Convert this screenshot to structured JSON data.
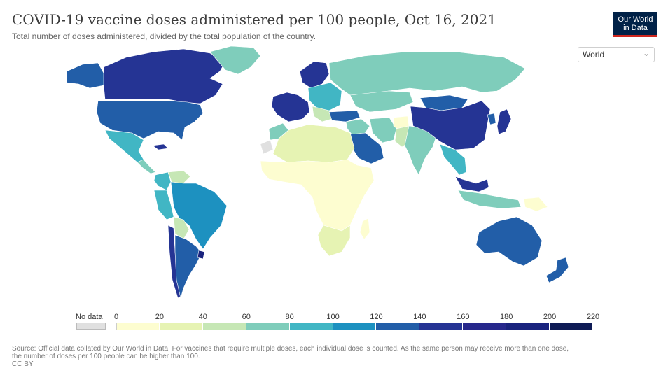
{
  "title": "COVID-19 vaccine doses administered per 100 people, Oct 16, 2021",
  "subtitle": "Total number of doses administered, divided by the total population of the country.",
  "logo": {
    "line1": "Our World",
    "line2": "in Data",
    "bg": "#002147",
    "accent": "#ce261e"
  },
  "region_select": {
    "value": "World",
    "icon": "chevron-down-icon"
  },
  "legend": {
    "no_data_label": "No data",
    "no_data_color": "#e0e0e0",
    "ticks": [
      "0",
      "20",
      "40",
      "60",
      "80",
      "100",
      "120",
      "140",
      "160",
      "180",
      "200",
      "220"
    ],
    "colors": [
      "#fdfdd0",
      "#e6f3b3",
      "#c6e7b5",
      "#7fcdbb",
      "#41b6c4",
      "#1d91c0",
      "#225ea8",
      "#253494",
      "#27288c",
      "#1a237e",
      "#0e1b55"
    ]
  },
  "source": {
    "line1": "Source: Official data collated by Our World in Data. For vaccines that require multiple doses, each individual dose is counted. As the same person may receive more than one dose,",
    "line2": "the number of doses per 100 people can be higher than 100.",
    "line3": "CC BY"
  },
  "regions": [
    {
      "name": "Canada",
      "color": "#253494"
    },
    {
      "name": "Alaska",
      "color": "#225ea8"
    },
    {
      "name": "Greenland",
      "color": "#7fcdbb"
    },
    {
      "name": "United States",
      "color": "#225ea8"
    },
    {
      "name": "Mexico",
      "color": "#41b6c4"
    },
    {
      "name": "Cuba",
      "color": "#253494"
    },
    {
      "name": "Central America",
      "color": "#7fcdbb"
    },
    {
      "name": "Colombia",
      "color": "#41b6c4"
    },
    {
      "name": "Venezuela",
      "color": "#c6e7b5"
    },
    {
      "name": "Peru",
      "color": "#41b6c4"
    },
    {
      "name": "Brazil",
      "color": "#1d91c0"
    },
    {
      "name": "Bolivia",
      "color": "#c6e7b5"
    },
    {
      "name": "Chile",
      "color": "#253494"
    },
    {
      "name": "Argentina",
      "color": "#225ea8"
    },
    {
      "name": "Uruguay",
      "color": "#1a237e"
    },
    {
      "name": "Western Europe",
      "color": "#253494"
    },
    {
      "name": "Scandinavia",
      "color": "#253494"
    },
    {
      "name": "Eastern Europe",
      "color": "#41b6c4"
    },
    {
      "name": "Balkans",
      "color": "#c6e7b5"
    },
    {
      "name": "Russia",
      "color": "#7fcdbb"
    },
    {
      "name": "Kazakhstan",
      "color": "#7fcdbb"
    },
    {
      "name": "Turkey",
      "color": "#225ea8"
    },
    {
      "name": "Middle East",
      "color": "#7fcdbb"
    },
    {
      "name": "Saudi Arabia",
      "color": "#225ea8"
    },
    {
      "name": "Iran",
      "color": "#7fcdbb"
    },
    {
      "name": "Afghanistan",
      "color": "#fdfdd0"
    },
    {
      "name": "Pakistan",
      "color": "#c6e7b5"
    },
    {
      "name": "India",
      "color": "#7fcdbb"
    },
    {
      "name": "China",
      "color": "#253494"
    },
    {
      "name": "Mongolia",
      "color": "#225ea8"
    },
    {
      "name": "Japan",
      "color": "#253494"
    },
    {
      "name": "Korea",
      "color": "#225ea8"
    },
    {
      "name": "Southeast Asia",
      "color": "#41b6c4"
    },
    {
      "name": "Indonesia",
      "color": "#7fcdbb"
    },
    {
      "name": "Malaysia",
      "color": "#253494"
    },
    {
      "name": "Papua New Guinea",
      "color": "#fdfdd0"
    },
    {
      "name": "North Africa",
      "color": "#e6f3b3"
    },
    {
      "name": "Morocco",
      "color": "#7fcdbb"
    },
    {
      "name": "Sub-Saharan Africa",
      "color": "#fdfdd0"
    },
    {
      "name": "Southern Africa",
      "color": "#e6f3b3"
    },
    {
      "name": "Madagascar",
      "color": "#fdfdd0"
    },
    {
      "name": "Australia",
      "color": "#225ea8"
    },
    {
      "name": "New Zealand",
      "color": "#225ea8"
    },
    {
      "name": "Western Sahara",
      "color": "#e0e0e0"
    }
  ]
}
